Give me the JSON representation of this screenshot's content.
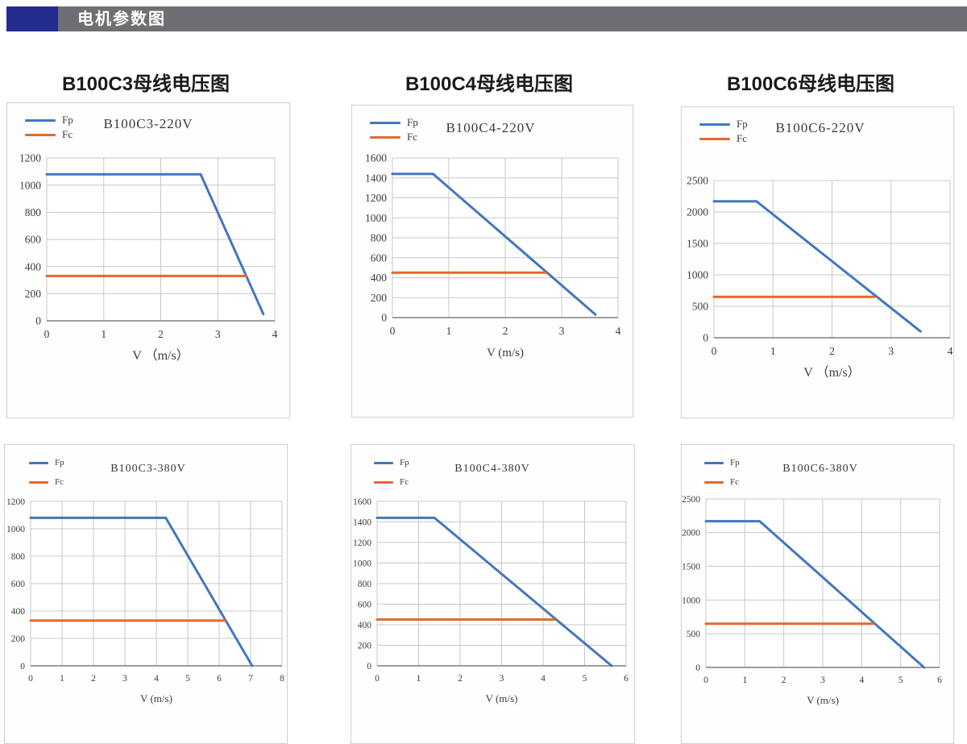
{
  "header": {
    "title": "电机参数图"
  },
  "column_titles": [
    "B100C3母线电压图",
    "B100C4母线电压图",
    "B100C6母线电压图"
  ],
  "colors": {
    "fp_line": "#4377be",
    "fc_line": "#e2692e",
    "header_block": "#232c8e",
    "header_bar": "#6e6e73",
    "grid": "#c8c8c8",
    "axis": "#9d9d9d",
    "box_border": "#d2d2d2"
  },
  "chart_data": [
    {
      "type": "line",
      "title": "B100C3-220V",
      "xlabel": "V （m/s）",
      "xlim": [
        0,
        4
      ],
      "xticks": [
        0,
        1,
        2,
        3,
        4
      ],
      "ylim": [
        0,
        1200
      ],
      "yticks": [
        0,
        200,
        400,
        600,
        800,
        1000,
        1200
      ],
      "grid": true,
      "legend_position": "top-left",
      "series": [
        {
          "name": "Fp",
          "color": "#4377be",
          "points": [
            [
              0,
              1080
            ],
            [
              2.7,
              1080
            ],
            [
              3.8,
              50
            ]
          ]
        },
        {
          "name": "Fc",
          "color": "#e2692e",
          "points": [
            [
              0,
              330
            ],
            [
              3.5,
              330
            ]
          ]
        }
      ]
    },
    {
      "type": "line",
      "title": "B100C4-220V",
      "xlabel": "V (m/s)",
      "xlim": [
        0,
        4
      ],
      "xticks": [
        0,
        1,
        2,
        3,
        4
      ],
      "ylim": [
        0,
        1600
      ],
      "yticks": [
        0,
        200,
        400,
        600,
        800,
        1000,
        1200,
        1400,
        1600
      ],
      "grid": true,
      "legend_position": "top-left",
      "series": [
        {
          "name": "Fp",
          "color": "#4377be",
          "points": [
            [
              0,
              1440
            ],
            [
              0.72,
              1440
            ],
            [
              3.6,
              30
            ]
          ]
        },
        {
          "name": "Fc",
          "color": "#e2692e",
          "points": [
            [
              0,
              450
            ],
            [
              2.72,
              450
            ]
          ]
        }
      ]
    },
    {
      "type": "line",
      "title": "B100C6-220V",
      "xlabel": "V （m/s）",
      "xlim": [
        0,
        4
      ],
      "xticks": [
        0,
        1,
        2,
        3,
        4
      ],
      "ylim": [
        0,
        2500
      ],
      "yticks": [
        0,
        500,
        1000,
        1500,
        2000,
        2500
      ],
      "grid": true,
      "legend_position": "top-left",
      "series": [
        {
          "name": "Fp",
          "color": "#4377be",
          "points": [
            [
              0,
              2170
            ],
            [
              0.72,
              2170
            ],
            [
              3.5,
              100
            ]
          ]
        },
        {
          "name": "Fc",
          "color": "#e2692e",
          "points": [
            [
              0,
              650
            ],
            [
              2.72,
              650
            ]
          ]
        }
      ]
    },
    {
      "type": "line",
      "title": "B100C3-380V",
      "xlabel": "V (m/s)",
      "xlim": [
        0,
        8
      ],
      "xticks": [
        0,
        1,
        2,
        3,
        4,
        5,
        6,
        7,
        8
      ],
      "ylim": [
        0,
        1200
      ],
      "yticks": [
        0,
        200,
        400,
        600,
        800,
        1000,
        1200
      ],
      "grid": true,
      "legend_position": "top-left",
      "series": [
        {
          "name": "Fp",
          "color": "#4377be",
          "points": [
            [
              0,
              1080
            ],
            [
              4.3,
              1080
            ],
            [
              7.05,
              0
            ]
          ]
        },
        {
          "name": "Fc",
          "color": "#e2692e",
          "points": [
            [
              0,
              330
            ],
            [
              6.2,
              330
            ]
          ]
        }
      ]
    },
    {
      "type": "line",
      "title": "B100C4-380V",
      "xlabel": "V (m/s)",
      "xlim": [
        0,
        6
      ],
      "xticks": [
        0,
        1,
        2,
        3,
        4,
        5,
        6
      ],
      "ylim": [
        0,
        1600
      ],
      "yticks": [
        0,
        200,
        400,
        600,
        800,
        1000,
        1200,
        1400,
        1600
      ],
      "grid": true,
      "legend_position": "top-left",
      "series": [
        {
          "name": "Fp",
          "color": "#4377be",
          "points": [
            [
              0,
              1440
            ],
            [
              1.38,
              1440
            ],
            [
              5.65,
              0
            ]
          ]
        },
        {
          "name": "Fc",
          "color": "#e2692e",
          "points": [
            [
              0,
              450
            ],
            [
              4.28,
              450
            ]
          ]
        }
      ]
    },
    {
      "type": "line",
      "title": "B100C6-380V",
      "xlabel": "V (m/s)",
      "xlim": [
        0,
        6
      ],
      "xticks": [
        0,
        1,
        2,
        3,
        4,
        5,
        6
      ],
      "ylim": [
        0,
        2500
      ],
      "yticks": [
        0,
        500,
        1000,
        1500,
        2000,
        2500
      ],
      "grid": true,
      "legend_position": "top-left",
      "series": [
        {
          "name": "Fp",
          "color": "#4377be",
          "points": [
            [
              0,
              2170
            ],
            [
              1.38,
              2170
            ],
            [
              5.6,
              0
            ]
          ]
        },
        {
          "name": "Fc",
          "color": "#e2692e",
          "points": [
            [
              0,
              650
            ],
            [
              4.3,
              650
            ]
          ]
        }
      ]
    }
  ]
}
